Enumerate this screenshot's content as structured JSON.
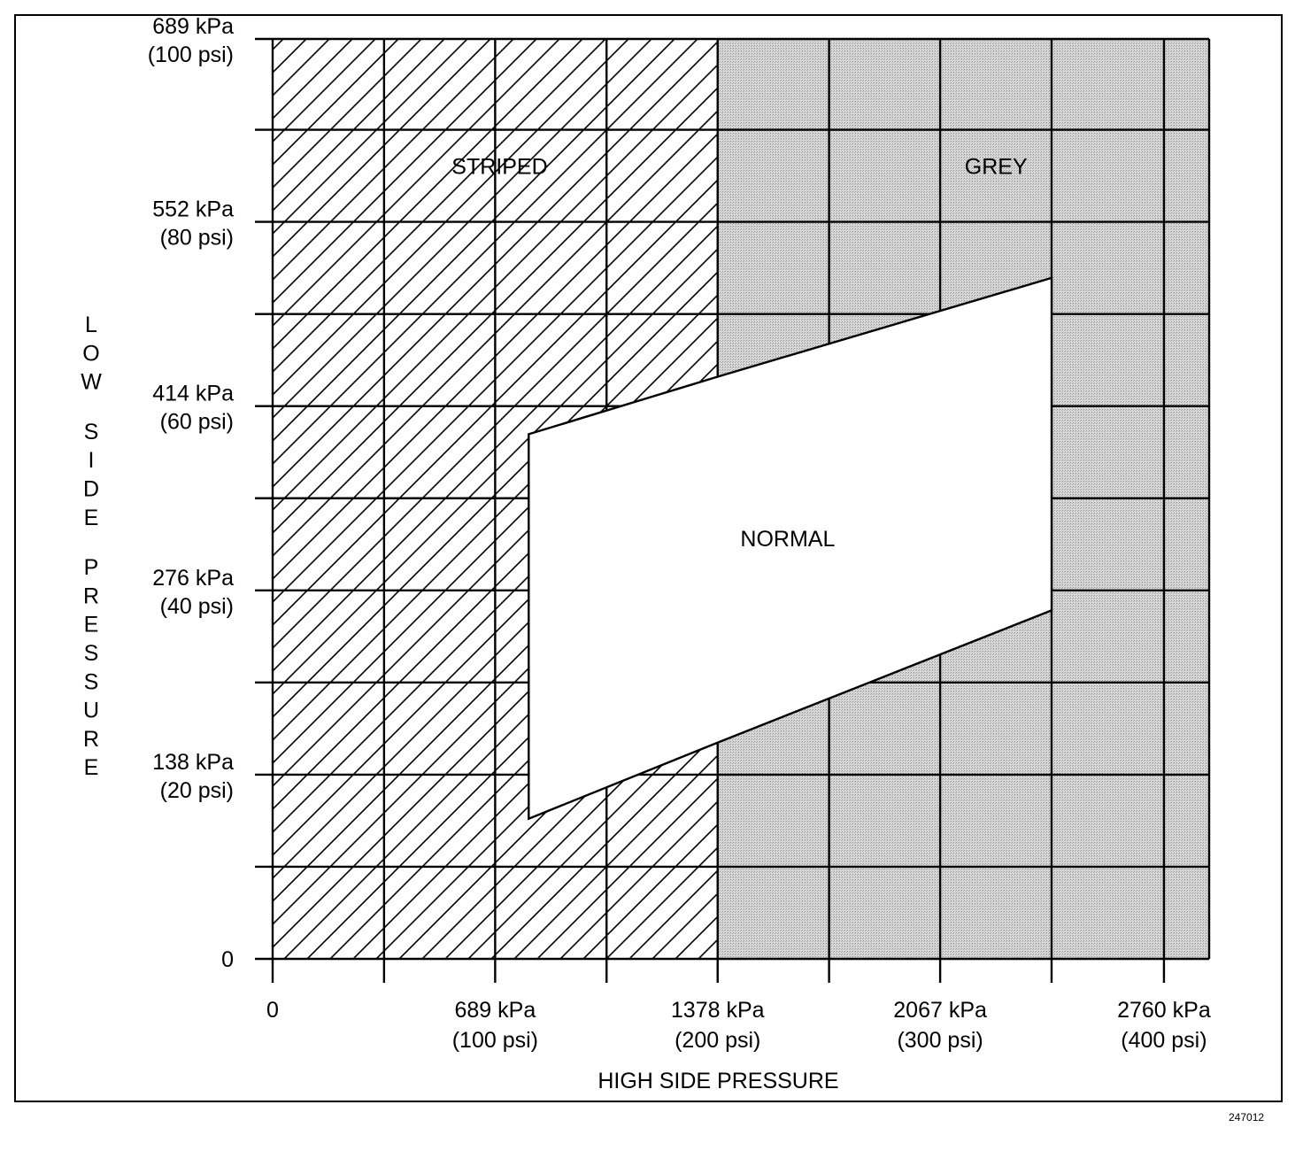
{
  "chart_data": {
    "type": "area",
    "xlabel": "HIGH SIDE PRESSURE",
    "ylabel": "LOW SIDE PRESSURE",
    "xlim": [
      0,
      2900
    ],
    "ylim": [
      0,
      689
    ],
    "x_gridlines_kpa": [
      0,
      345,
      689,
      1034,
      1378,
      1723,
      2067,
      2412,
      2760,
      2900
    ],
    "y_gridlines_kpa": [
      0,
      69,
      138,
      207,
      276,
      345,
      414,
      483,
      552,
      621,
      689
    ],
    "x_ticks": [
      {
        "value": 0,
        "line1": "0",
        "line2": ""
      },
      {
        "value": 689,
        "line1": "689 kPa",
        "line2": "(100 psi)"
      },
      {
        "value": 1378,
        "line1": "1378 kPa",
        "line2": "(200 psi)"
      },
      {
        "value": 2067,
        "line1": "2067 kPa",
        "line2": "(300 psi)"
      },
      {
        "value": 2760,
        "line1": "2760 kPa",
        "line2": "(400 psi)"
      }
    ],
    "y_ticks": [
      {
        "value": 689,
        "line1": "689 kPa",
        "line2": "(100 psi)"
      },
      {
        "value": 552,
        "line1": "552 kPa",
        "line2": "(80 psi)"
      },
      {
        "value": 414,
        "line1": "414 kPa",
        "line2": "(60 psi)"
      },
      {
        "value": 276,
        "line1": "276 kPa",
        "line2": "(40 psi)"
      },
      {
        "value": 138,
        "line1": "138 kPa",
        "line2": "(20 psi)"
      },
      {
        "value": 0,
        "line1": "0",
        "line2": ""
      }
    ],
    "regions": [
      {
        "name": "STRIPED",
        "fill": "hatch",
        "label_at": [
          703,
          594
        ],
        "polygon": [
          [
            0,
            0
          ],
          [
            1378,
            0
          ],
          [
            1378,
            689
          ],
          [
            0,
            689
          ]
        ]
      },
      {
        "name": "GREY",
        "fill": "grey",
        "label_at": [
          2240,
          594
        ],
        "polygon": [
          [
            1378,
            0
          ],
          [
            2900,
            0
          ],
          [
            2900,
            689
          ],
          [
            1378,
            689
          ]
        ]
      },
      {
        "name": "NORMAL",
        "fill": "white",
        "label_at": [
          1595,
          315
        ],
        "polygon": [
          [
            793,
            393
          ],
          [
            1378,
            436
          ],
          [
            2412,
            510
          ],
          [
            2412,
            261
          ],
          [
            1378,
            162
          ],
          [
            793,
            105
          ]
        ]
      }
    ],
    "colors": {
      "line": "#000000",
      "grey": "#cfcfcf",
      "hatch": "#000000",
      "normal": "#ffffff"
    }
  },
  "figure_id": "247012"
}
